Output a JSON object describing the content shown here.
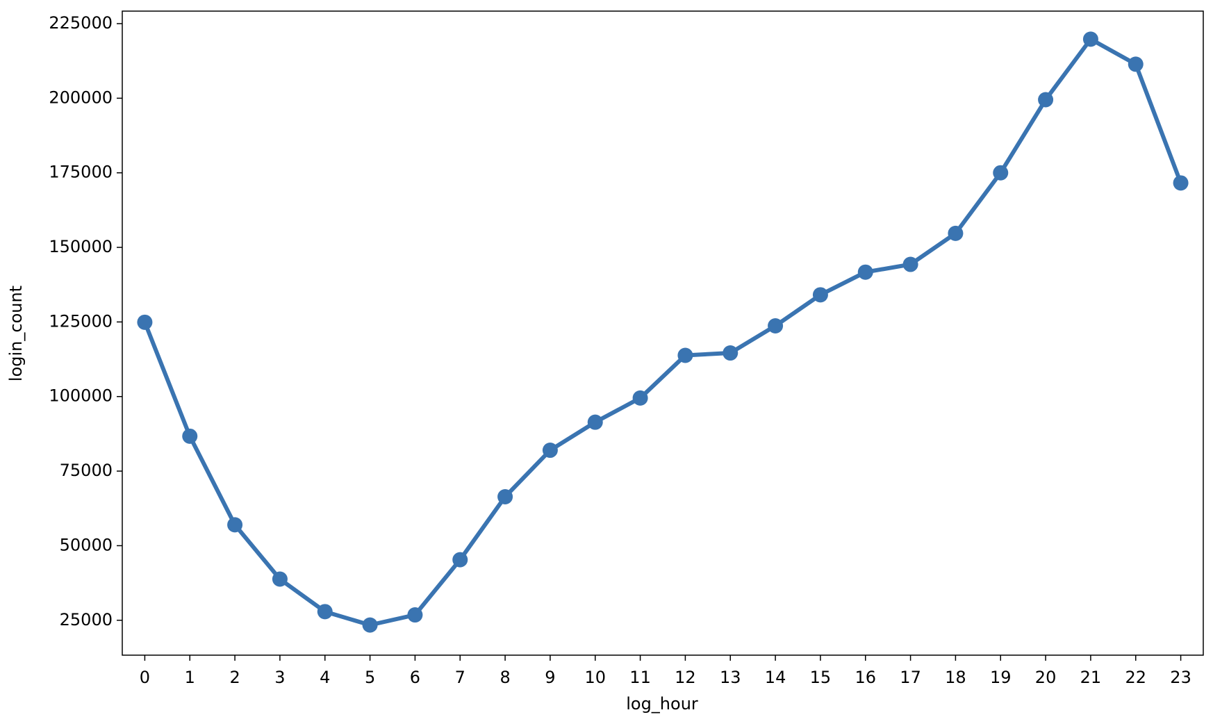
{
  "chart_data": {
    "type": "line",
    "xlabel": "log_hour",
    "ylabel": "login_count",
    "categories": [
      "0",
      "1",
      "2",
      "3",
      "4",
      "5",
      "6",
      "7",
      "8",
      "9",
      "10",
      "11",
      "12",
      "13",
      "14",
      "15",
      "16",
      "17",
      "18",
      "19",
      "20",
      "21",
      "22",
      "23"
    ],
    "values": [
      124900,
      86700,
      57000,
      38800,
      27900,
      23400,
      26800,
      45300,
      66400,
      82000,
      91400,
      99500,
      113800,
      114600,
      123700,
      134100,
      141700,
      144300,
      154700,
      175000,
      199500,
      219800,
      211400,
      171600
    ],
    "color": "#3a74b1",
    "ylim": [
      13300,
      229200
    ],
    "yticks": [
      25000,
      50000,
      75000,
      100000,
      125000,
      150000,
      175000,
      200000,
      225000
    ],
    "grid": false
  }
}
